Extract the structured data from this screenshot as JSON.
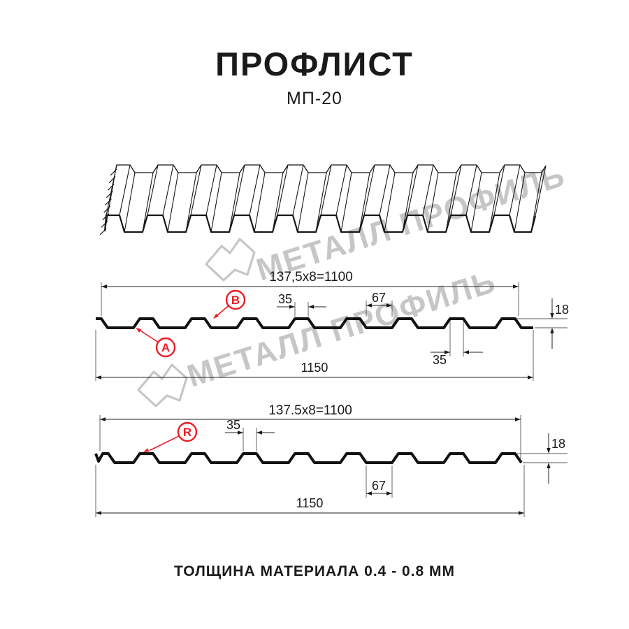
{
  "header": {
    "title": "ПРОФЛИСТ",
    "subtitle": "МП-20"
  },
  "footer": {
    "text": "ТОЛЩИНА МАТЕРИАЛА 0.4 - 0.8 ММ"
  },
  "watermark": {
    "text": "МЕТАЛЛ ПРОФИЛЬ"
  },
  "colors": {
    "accent_red": "#ec1c24",
    "line": "#111111",
    "watermark": "#c6c6c6"
  },
  "section_b": {
    "pitch_label": "137,5x8=1100",
    "dim_rib_top": "35",
    "dim_valley": "67",
    "dim_rib_bottom": "35",
    "dim_height": "18",
    "dim_overall": "1150",
    "marker_a": "A",
    "marker_b": "B"
  },
  "section_r": {
    "pitch_label": "137.5x8=1100",
    "dim_rib_top": "35",
    "dim_valley": "67",
    "dim_height": "18",
    "dim_overall": "1150",
    "marker_r": "R"
  }
}
